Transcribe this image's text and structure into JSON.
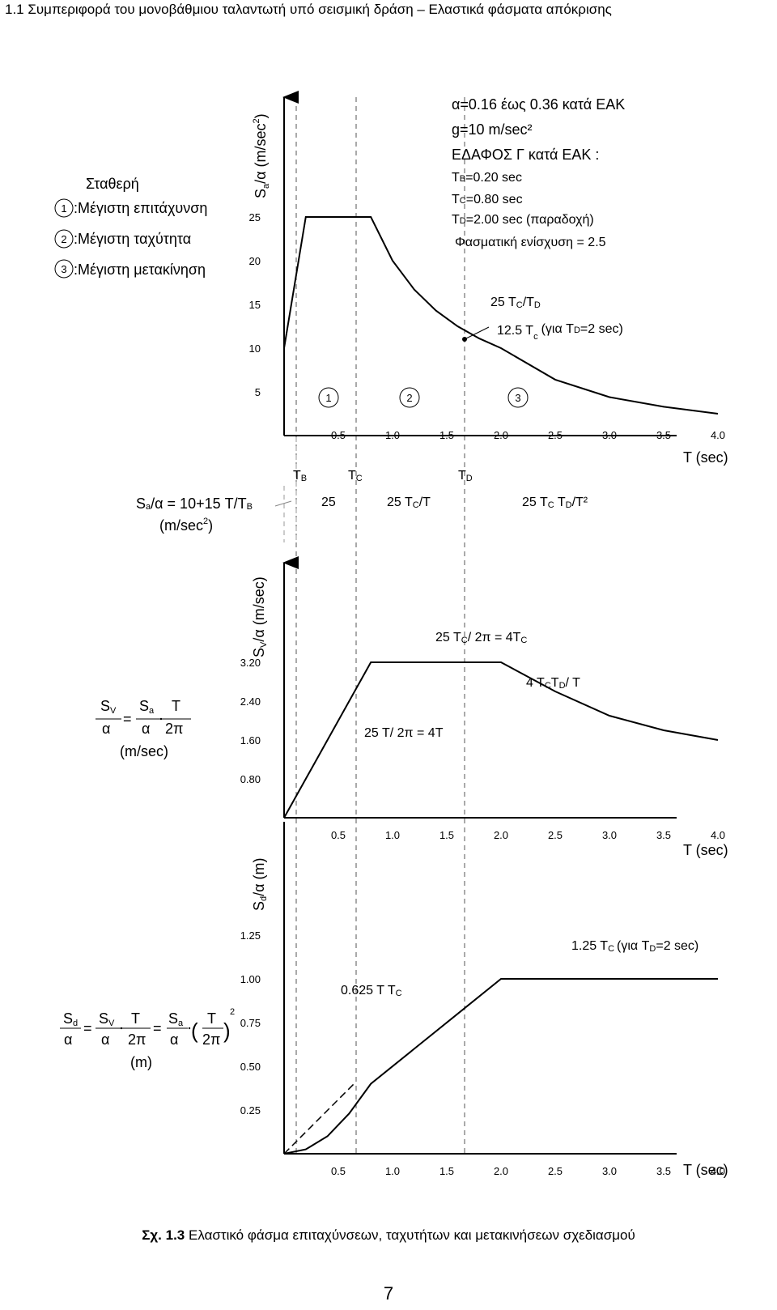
{
  "heading": "1.1  Συμπεριφορά του μονοβάθμιου ταλαντωτή υπό σεισμική δράση – Ελαστικά φάσματα απόκρισης",
  "legend": {
    "title": "Σταθερή",
    "items": [
      {
        "num": "1",
        "label": ":Μέγιστη επιτάχυνση"
      },
      {
        "num": "2",
        "label": ":Μέγιστη ταχύτητα"
      },
      {
        "num": "3",
        "label": ":Μέγιστη μετακίνηση"
      }
    ]
  },
  "params": {
    "line1": "α=0.16 έως 0.36 κατά ΕΑΚ",
    "line2": "g=10 m/sec²",
    "line3": "ΕΔΑΦΟΣ Γ κατά ΕΑΚ :",
    "tb": "=0.20 sec",
    "tc": "=0.80 sec",
    "td": "=2.00 sec (παραδοχή)",
    "amp": "Φασματική ενίσχυση = 2.5"
  },
  "acc": {
    "ylabel_main": "S",
    "ylabel_sub": "a",
    "ylabel_rest": "/α (m/sec",
    "ylabel_sup": "2",
    "yticks": [
      "25",
      "20",
      "15",
      "10",
      "5"
    ],
    "ann1": "25 T",
    "ann1_sub": "C",
    "ann1_rest": "/T",
    "ann1_sub2": "D",
    "ann2": "12.5 T",
    "ann2_sub": "c",
    "ann2_rest": "(για T",
    "ann2_sub2": "D",
    "ann2_end": "=2 sec)",
    "region_nums": [
      "1",
      "2",
      "3"
    ],
    "xticks": [
      "0.5",
      "1.0",
      "1.5",
      "2.0",
      "2.5",
      "3.0",
      "3.5",
      "4.0"
    ],
    "xlabel": "T (sec)",
    "tb_main": "T",
    "tb_sub": "B",
    "tc_main": "T",
    "tc_sub": "C",
    "td_main": "T",
    "td_sub": "D",
    "formula_left": "S",
    "formula_sub": "a",
    "formula_rest": "/α = 10+15 T/T",
    "formula_sub2": "B",
    "formula_unit": "(m/sec",
    "formula_unit_sup": "2",
    "formula_unit_end": ")",
    "f_plateau": "25",
    "f_vel": "25 T",
    "f_vel_sub": "C",
    "f_vel_rest": "/T",
    "f_disp": "25 T",
    "f_disp_sub": "C",
    "f_disp_mid": " T",
    "f_disp_sub2": "D",
    "f_disp_rest": "/T²"
  },
  "vel": {
    "ylabel_main": "S",
    "ylabel_sub": "V",
    "ylabel_rest": "/α (m/sec)",
    "yticks": [
      "3.20",
      "2.40",
      "1.60",
      "0.80"
    ],
    "ann_plateau": "25 T",
    "ann_plateau_sub": "C",
    "ann_plateau_rest": "/ 2π = 4T",
    "ann_plateau_sub2": "C",
    "ann_decay": "4 T",
    "ann_decay_sub": "C",
    "ann_decay_mid": "T",
    "ann_decay_sub2": "D",
    "ann_decay_rest": "/ T",
    "ann_rise": "25 T/ 2π = 4T",
    "f_sv": "S",
    "f_sv_sub": "V",
    "f_alpha": "α",
    "f_eq": "=",
    "f_sa": "S",
    "f_sa_sub": "a",
    "f_t": "T",
    "f_2pi": "2π",
    "f_unit": "(m/sec)",
    "xticks": [
      "0.5",
      "1.0",
      "1.5",
      "2.0",
      "2.5",
      "3.0",
      "3.5",
      "4.0"
    ],
    "xlabel": "T (sec)"
  },
  "disp": {
    "ylabel_main": "S",
    "ylabel_sub": "d",
    "ylabel_rest": "/α (m)",
    "yticks": [
      "1.25",
      "1.00",
      "0.75",
      "0.50",
      "0.25"
    ],
    "ann_plateau": "1.25 T",
    "ann_plateau_sub": "C",
    "ann_plateau_rest": "(για T",
    "ann_plateau_sub2": "D",
    "ann_plateau_end": "=2 sec)",
    "ann_rise": "0.625 T T",
    "ann_rise_sub": "C",
    "f_sd": "S",
    "f_sd_sub": "d",
    "f_alpha": "α",
    "f_eq": "=",
    "f_sv": "S",
    "f_sv_sub": "V",
    "f_t": "T",
    "f_2pi": "2π",
    "f_sa": "S",
    "f_sa_sub": "a",
    "f_sq": "2",
    "f_unit": "(m)",
    "xticks": [
      "0.5",
      "1.0",
      "1.5",
      "2.0",
      "2.5",
      "3.0",
      "3.5",
      "4.0"
    ],
    "xlabel": "T (sec)"
  },
  "caption_bold": "Σχ. 1.3",
  "caption_rest": " Ελαστικό φάσμα επιταχύνσεων, ταχυτήτων και μετακινήσεων σχεδιασμού",
  "page_number": "7",
  "chart_data": [
    {
      "type": "line",
      "title": "",
      "xlabel": "T (sec)",
      "ylabel": "Sa/α (m/sec2)",
      "xlim": [
        0,
        4.2
      ],
      "ylim": [
        0,
        28
      ],
      "x": [
        0,
        0.2,
        0.8,
        1.0,
        1.2,
        1.4,
        1.6,
        1.8,
        2.0,
        2.5,
        3.0,
        3.5,
        4.0
      ],
      "series": [
        {
          "values": [
            10,
            25,
            25,
            20,
            16.7,
            14.3,
            12.5,
            11.1,
            10,
            6.4,
            4.4,
            3.3,
            2.5
          ]
        }
      ]
    },
    {
      "type": "line",
      "title": "",
      "xlabel": "T (sec)",
      "ylabel": "Sv/α (m/sec)",
      "xlim": [
        0,
        4.2
      ],
      "ylim": [
        0,
        3.6
      ],
      "x": [
        0,
        0.05,
        0.1,
        0.2,
        0.8,
        1.6,
        2.0,
        2.5,
        3.0,
        3.5,
        4.0
      ],
      "series": [
        {
          "values": [
            0,
            0.2,
            0.4,
            0.8,
            3.2,
            3.2,
            3.2,
            2.6,
            2.1,
            1.8,
            1.6
          ]
        }
      ]
    },
    {
      "type": "line",
      "title": "",
      "xlabel": "T (sec)",
      "ylabel": "Sd/α (m)",
      "xlim": [
        0,
        4.2
      ],
      "ylim": [
        0,
        1.4
      ],
      "x": [
        0,
        0.2,
        0.4,
        0.6,
        0.8,
        1.2,
        1.6,
        2.0,
        3.0,
        4.0
      ],
      "series": [
        {
          "values": [
            0,
            0.025,
            0.1,
            0.23,
            0.4,
            0.6,
            0.8,
            1.0,
            1.0,
            1.0
          ]
        }
      ]
    }
  ]
}
